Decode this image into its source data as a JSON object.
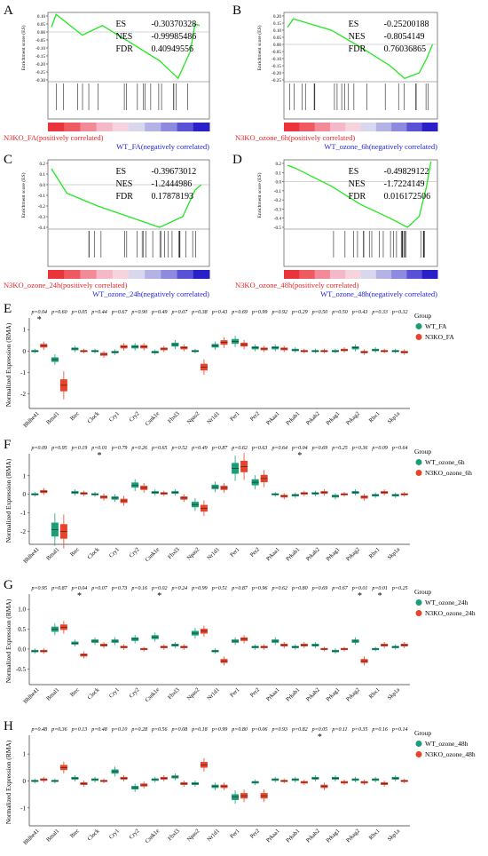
{
  "colors": {
    "wt": "#1a9e77",
    "ko": "#e8442b",
    "curve": "#22e622",
    "pos_label": "#e8262b",
    "neg_label": "#1f1fd6"
  },
  "gsea_common": {
    "ylabel": "Enrichment score (ES)",
    "es_label": "ES",
    "nes_label": "NES",
    "fdr_label": "FDR"
  },
  "gsea_panels": [
    {
      "letter": "A",
      "es": "-0.30370328",
      "nes": "-0.99985486",
      "fdr": "0.40949556",
      "ticks": [
        "0.10",
        "0.05",
        "0.00",
        "-0.05",
        "-0.10",
        "-0.15",
        "-0.20",
        "-0.25",
        "-0.30"
      ],
      "pos_label": "N3KO_FA(positively correlated)",
      "neg_label": "WT_FA(negatively correlated)",
      "curve": [
        [
          0,
          0.03
        ],
        [
          0.03,
          0.11
        ],
        [
          0.2,
          -0.02
        ],
        [
          0.33,
          0.04
        ],
        [
          0.5,
          -0.06
        ],
        [
          0.7,
          -0.18
        ],
        [
          0.82,
          -0.29
        ],
        [
          0.9,
          -0.12
        ],
        [
          0.93,
          0.05
        ],
        [
          0.96,
          0.04
        ]
      ]
    },
    {
      "letter": "B",
      "es": "-0.25200188",
      "nes": "-0.8054149",
      "fdr": "0.76036865",
      "ticks": [
        "0.20",
        "0.15",
        "0.10",
        "0.05",
        "0.00",
        "-0.05",
        "-0.10",
        "-0.15",
        "-0.20",
        "-0.25"
      ],
      "pos_label": "N3KO_ozone_6h(positively correlated)",
      "neg_label": "WT_ozone_6h(negatively correlated)",
      "curve": [
        [
          0,
          0.12
        ],
        [
          0.04,
          0.18
        ],
        [
          0.3,
          0.1
        ],
        [
          0.5,
          -0.02
        ],
        [
          0.7,
          -0.15
        ],
        [
          0.8,
          -0.24
        ],
        [
          0.9,
          -0.2
        ],
        [
          0.95,
          -0.1
        ],
        [
          0.99,
          0.0
        ]
      ]
    },
    {
      "letter": "C",
      "es": "-0.39673012",
      "nes": "-1.2444986",
      "fdr": "0.17878193",
      "ticks": [
        "0.2",
        "0.1",
        "0.0",
        "-0.1",
        "-0.2",
        "-0.3",
        "-0.4"
      ],
      "pos_label": "N3KO_ozone_24h(positively correlated)",
      "neg_label": "WT_ozone_24h(negatively correlated)",
      "curve": [
        [
          0,
          0.15
        ],
        [
          0.1,
          -0.08
        ],
        [
          0.3,
          -0.2
        ],
        [
          0.5,
          -0.3
        ],
        [
          0.7,
          -0.4
        ],
        [
          0.85,
          -0.3
        ],
        [
          0.93,
          -0.05
        ],
        [
          0.97,
          0.0
        ]
      ]
    },
    {
      "letter": "D",
      "es": "-0.49829122",
      "nes": "-1.7224149",
      "fdr": "0.016172506",
      "ticks": [
        "0.2",
        "0.1",
        "0.0",
        "-0.1",
        "-0.2",
        "-0.3",
        "-0.4",
        "-0.5"
      ],
      "pos_label": "N3KO_ozone_48h(positively correlated)",
      "neg_label": "WT_ozone_48h(negatively correlated)",
      "curve": [
        [
          0,
          0.18
        ],
        [
          0.05,
          0.15
        ],
        [
          0.3,
          -0.05
        ],
        [
          0.5,
          -0.25
        ],
        [
          0.7,
          -0.4
        ],
        [
          0.82,
          -0.5
        ],
        [
          0.9,
          -0.38
        ],
        [
          0.95,
          -0.05
        ],
        [
          0.98,
          0.22
        ]
      ]
    }
  ],
  "boxplot_common": {
    "ylabel": "Normalized Expression (RMA)",
    "legend_title": "Group",
    "genes": [
      "Bhlhe41",
      "Bmal1",
      "Btrc",
      "Clock",
      "Cry1",
      "Cry2",
      "Csnk1e",
      "Fbxl3",
      "Npas2",
      "Nr1d1",
      "Per1",
      "Per2",
      "Prkaa1",
      "Prkab1",
      "Prkab2",
      "Prkag1",
      "Prkag2",
      "Rbx1",
      "Skp1a"
    ]
  },
  "chart_data": [
    {
      "type": "box",
      "panel": "E",
      "ticks": [
        "1",
        "0",
        "-1",
        "-2"
      ],
      "ylim": [
        -2.6,
        1.3
      ],
      "legend": [
        "WT_FA",
        "N3KO_FA"
      ],
      "pvalues": [
        "p=0.04",
        "p=0.60",
        "p=0.05",
        "p=0.44",
        "p=0.67",
        "p=0.90",
        "p=0.49",
        "p=0.07",
        "p=0.38",
        "p=0.43",
        "p=0.69",
        "p=0.99",
        "p=0.92",
        "p=0.29",
        "p=0.50",
        "p=0.50",
        "p=0.43",
        "p=0.33",
        "p=0.32"
      ],
      "stars": [
        "*",
        "",
        "",
        "",
        "",
        "",
        "",
        "",
        "",
        "",
        "",
        "",
        "",
        "",
        "",
        "",
        "",
        "",
        ""
      ],
      "series": [
        {
          "name": "WT_FA",
          "values": [
            0.0,
            -0.4,
            0.1,
            0.0,
            -0.05,
            0.2,
            -0.05,
            0.3,
            0.0,
            0.25,
            0.45,
            0.15,
            0.15,
            0.05,
            0.0,
            0.0,
            0.15,
            0.05,
            0.0
          ]
        },
        {
          "name": "N3KO_FA",
          "values": [
            0.25,
            -1.6,
            0.0,
            -0.15,
            0.2,
            0.2,
            0.1,
            0.15,
            -0.75,
            0.4,
            0.3,
            0.1,
            0.1,
            0.0,
            0.0,
            0.05,
            -0.05,
            0.0,
            -0.05
          ]
        }
      ]
    },
    {
      "type": "box",
      "panel": "F",
      "ticks": [
        "1",
        "0",
        "-1",
        "-2"
      ],
      "ylim": [
        -2.6,
        1.9
      ],
      "legend": [
        "WT_ozone_6h",
        "N3KO_ozone_6h"
      ],
      "pvalues": [
        "p=0.09",
        "p=0.95",
        "p=0.19",
        "p=0.01",
        "p=0.79",
        "p=0.26",
        "p=0.65",
        "p=0.52",
        "p=0.49",
        "p=0.87",
        "p=0.62",
        "p=0.63",
        "p=0.64",
        "p=0.04",
        "p=0.69",
        "p=0.25",
        "p=0.36",
        "p=0.09",
        "p=0.64"
      ],
      "stars": [
        "",
        "",
        "",
        "*",
        "",
        "",
        "",
        "",
        "",
        "",
        "",
        "",
        "",
        "*",
        "",
        "",
        "",
        "",
        ""
      ],
      "series": [
        {
          "name": "WT_ozone_6h",
          "values": [
            0.0,
            -1.9,
            0.1,
            0.0,
            -0.2,
            0.5,
            0.1,
            0.1,
            -0.55,
            0.4,
            1.4,
            0.65,
            0.0,
            -0.05,
            0.05,
            -0.1,
            0.1,
            -0.05,
            -0.05
          ]
        },
        {
          "name": "N3KO_ozone_6h",
          "values": [
            0.15,
            -2.0,
            0.05,
            -0.15,
            -0.35,
            0.35,
            0.05,
            -0.2,
            -0.75,
            0.35,
            1.5,
            0.85,
            -0.1,
            0.05,
            0.1,
            0.0,
            -0.15,
            0.1,
            0.0
          ]
        }
      ]
    },
    {
      "type": "box",
      "panel": "G",
      "ticks": [
        "1.0",
        "0.5",
        "0.0",
        "-0.5"
      ],
      "ylim": [
        -0.85,
        1.25
      ],
      "legend": [
        "WT_ozone_24h",
        "N3KO_ozone_24h"
      ],
      "pvalues": [
        "p=0.95",
        "p=0.87",
        "p=0.04",
        "p=0.07",
        "p=0.73",
        "p=0.16",
        "p=0.02",
        "p=0.24",
        "p=0.99",
        "p=0.51",
        "p=0.87",
        "p=0.96",
        "p=0.62",
        "p=0.80",
        "p=0.69",
        "p=0.67",
        "p=0.01",
        "p=0.01",
        "p=0.25"
      ],
      "stars": [
        "",
        "",
        "*",
        "",
        "",
        "",
        "*",
        "",
        "",
        "",
        "",
        "",
        "",
        "",
        "",
        "",
        "*",
        "*",
        ""
      ],
      "series": [
        {
          "name": "WT_ozone_24h",
          "values": [
            -0.05,
            0.5,
            0.15,
            0.2,
            0.2,
            0.25,
            0.3,
            0.1,
            0.4,
            -0.05,
            0.2,
            0.05,
            0.2,
            0.05,
            0.1,
            -0.05,
            0.2,
            0.0,
            0.05
          ]
        },
        {
          "name": "N3KO_ozone_24h",
          "values": [
            -0.05,
            0.55,
            -0.15,
            0.1,
            0.05,
            0.0,
            0.05,
            0.05,
            0.45,
            -0.3,
            0.25,
            0.05,
            0.1,
            0.1,
            0.0,
            0.0,
            -0.3,
            0.1,
            0.1
          ]
        }
      ]
    },
    {
      "type": "box",
      "panel": "H",
      "ticks": [
        "1",
        "0",
        "-1"
      ],
      "ylim": [
        -1.6,
        1.5
      ],
      "legend": [
        "WT_ozone_48h",
        "N3KO_ozone_48h"
      ],
      "pvalues": [
        "p=0.48",
        "p=0.36",
        "p=0.13",
        "p=0.48",
        "p=0.10",
        "p=0.28",
        "p=0.56",
        "p=0.08",
        "p=0.18",
        "p=0.99",
        "p=0.80",
        "p=0.06",
        "p=0.93",
        "p=0.82",
        "p=0.05",
        "p=0.11",
        "p=0.35",
        "p=0.16",
        "p=0.14"
      ],
      "stars": [
        "",
        "",
        "",
        "",
        "",
        "",
        "",
        "",
        "",
        "",
        "",
        "",
        "",
        "",
        "*",
        "",
        "",
        "",
        ""
      ],
      "series": [
        {
          "name": "WT_ozone_48h",
          "values": [
            0.0,
            0.0,
            0.1,
            0.05,
            0.35,
            -0.25,
            0.05,
            0.15,
            -0.1,
            -0.2,
            -0.6,
            -0.05,
            0.05,
            0.05,
            0.1,
            0.1,
            0.05,
            0.05,
            0.1
          ]
        },
        {
          "name": "N3KO_ozone_48h",
          "values": [
            0.05,
            0.5,
            -0.1,
            0.0,
            0.1,
            -0.15,
            0.1,
            -0.1,
            0.6,
            -0.2,
            -0.55,
            -0.55,
            0.0,
            -0.05,
            -0.2,
            -0.05,
            -0.05,
            -0.1,
            0.0
          ]
        }
      ]
    }
  ]
}
